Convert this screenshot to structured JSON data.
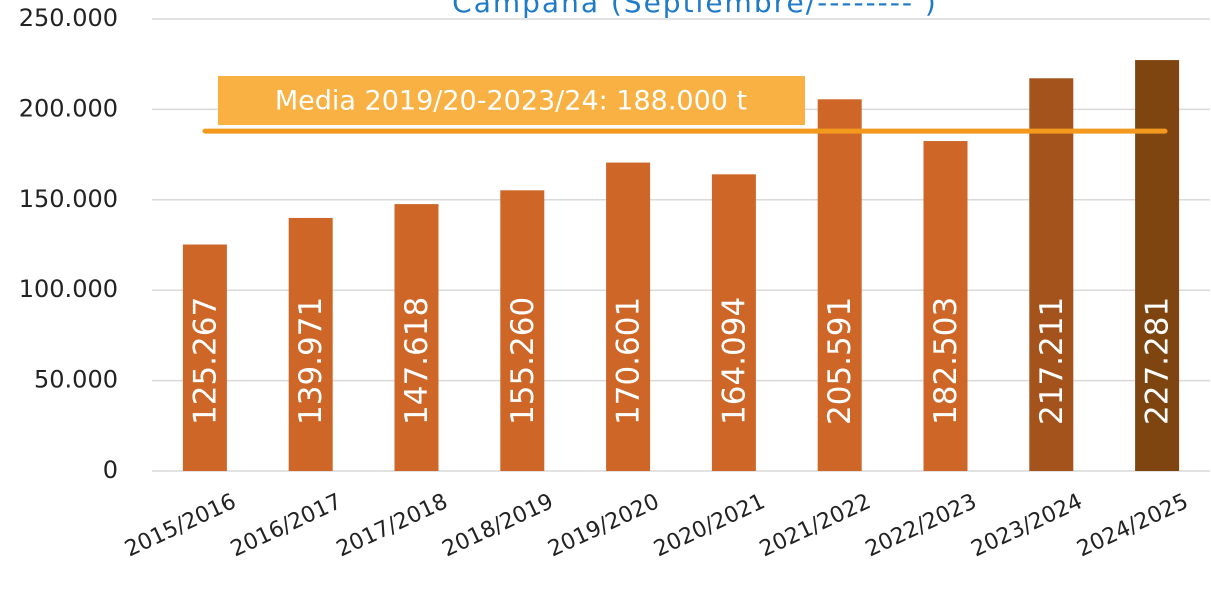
{
  "chart_data": {
    "type": "bar",
    "title": "Campaña (Septiembre/-------- )",
    "categories": [
      "2015/2016",
      "2016/2017",
      "2017/2018",
      "2018/2019",
      "2019/2020",
      "2020/2021",
      "2021/2022",
      "2022/2023",
      "2023/2024",
      "2024/2025"
    ],
    "values": [
      125267,
      139971,
      147618,
      155260,
      170601,
      164094,
      205591,
      182503,
      217211,
      227281
    ],
    "value_labels": [
      "125.267",
      "139.971",
      "147.618",
      "155.260",
      "170.601",
      "164.094",
      "205.591",
      "182.503",
      "217.211",
      "227.281"
    ],
    "colors": [
      "#cd6627",
      "#cd6627",
      "#cd6627",
      "#cd6627",
      "#cd6627",
      "#cd6627",
      "#cd6627",
      "#cd6627",
      "#a3531b",
      "#7e4510"
    ],
    "ylim": [
      0,
      250000
    ],
    "yticks": [
      0,
      {
        "value": 50000,
        "label": "50.000"
      },
      {
        "value": 100000,
        "label": "100.000"
      },
      {
        "value": 150000,
        "label": "150.000"
      },
      {
        "value": 200000,
        "label": "200.000"
      },
      {
        "value": 250000,
        "label": "250.000"
      }
    ],
    "grid": true,
    "reference_line": {
      "value": 188000,
      "label": "Media 2019/20-2023/24: 188.000 t",
      "color": "#f39a1e",
      "label_color": "#f8b142"
    }
  }
}
